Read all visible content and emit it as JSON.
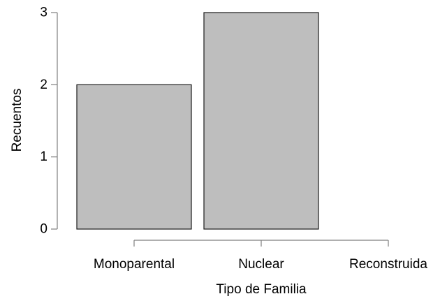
{
  "chart_data": {
    "type": "bar",
    "categories": [
      "Monoparental",
      "Nuclear",
      "Reconstruida"
    ],
    "values": [
      2,
      3,
      0
    ],
    "xlabel": "Tipo de Familia",
    "ylabel": "Recuentos",
    "ylim": [
      0,
      3
    ],
    "yticks": [
      0,
      1,
      2,
      3
    ],
    "grid": false,
    "legend": "none",
    "colors": {
      "bar_fill": "#bebebe",
      "bar_stroke": "#1a1a1a",
      "axis": "#7f7f7f"
    }
  }
}
